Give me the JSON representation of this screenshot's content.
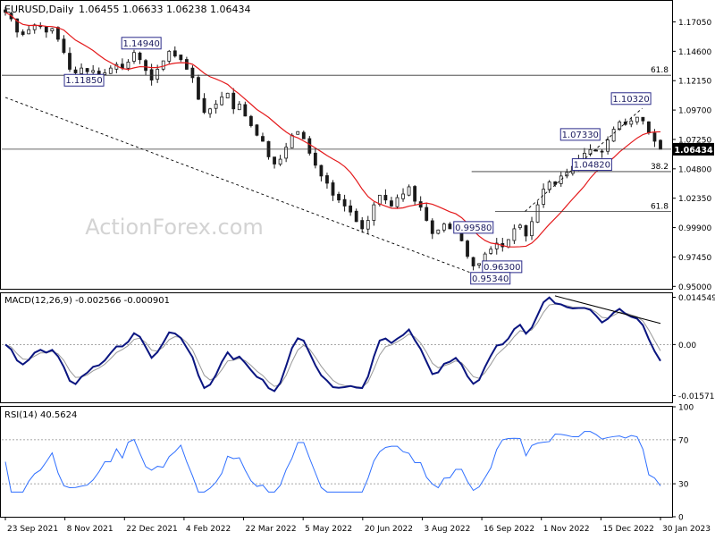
{
  "header": {
    "symbol": "EURUSD,Daily",
    "ohlc": "1.06455 1.06633 1.06238 1.06434"
  },
  "watermark": "ActionForex.com",
  "colors": {
    "background": "#ffffff",
    "candle": "#1a1a1a",
    "ma": "#e41a1c",
    "macd_line": "#0a1580",
    "macd_signal": "#999999",
    "rsi_line": "#2f6fff",
    "level_line": "#333333",
    "trendline": "#000000",
    "label_border": "#2b2b8a",
    "price_tag_bg": "#000000",
    "price_tag_text": "#ffffff"
  },
  "chart_data": [
    {
      "type": "candlestick",
      "title": "EURUSD,Daily",
      "ylim": [
        0.948,
        1.188
      ],
      "y_ticks": [
        "1.17050",
        "1.14600",
        "1.12150",
        "1.09700",
        "1.07250",
        "1.04800",
        "1.02350",
        "0.99900",
        "0.97450",
        "0.95000"
      ],
      "x_ticks": [
        "23 Sep 2021",
        "8 Nov 2021",
        "22 Dec 2021",
        "4 Feb 2022",
        "22 Mar 2022",
        "5 May 2022",
        "20 Jun 2022",
        "3 Aug 2022",
        "16 Sep 2022",
        "1 Nov 2022",
        "15 Dec 2022",
        "30 Jan 2023"
      ],
      "dates": [
        "2021-09-23",
        "2021-09-27",
        "2021-10-01",
        "2021-10-06",
        "2021-10-11",
        "2021-10-15",
        "2021-10-20",
        "2021-10-25",
        "2021-10-29",
        "2021-11-03",
        "2021-11-08",
        "2021-11-12",
        "2021-11-17",
        "2021-11-21",
        "2021-11-26",
        "2021-11-30",
        "2021-12-05",
        "2021-12-09",
        "2021-12-14",
        "2021-12-18",
        "2021-12-22",
        "2021-12-26",
        "2021-12-31",
        "2022-01-05",
        "2022-01-09",
        "2022-01-14",
        "2022-01-18",
        "2022-01-23",
        "2022-01-27",
        "2022-01-31",
        "2022-02-04",
        "2022-02-09",
        "2022-02-13",
        "2022-02-17",
        "2022-02-22",
        "2022-02-26",
        "2022-03-03",
        "2022-03-07",
        "2022-03-12",
        "2022-03-17",
        "2022-03-22",
        "2022-03-26",
        "2022-03-30",
        "2022-04-03",
        "2022-04-08",
        "2022-04-12",
        "2022-04-17",
        "2022-04-21",
        "2022-04-26",
        "2022-04-30",
        "2022-05-05",
        "2022-05-09",
        "2022-05-13",
        "2022-05-17",
        "2022-05-22",
        "2022-05-27",
        "2022-05-31",
        "2022-06-05",
        "2022-06-09",
        "2022-06-14",
        "2022-06-20",
        "2022-06-24",
        "2022-06-29",
        "2022-07-04",
        "2022-07-09",
        "2022-07-14",
        "2022-07-19",
        "2022-07-23",
        "2022-07-28",
        "2022-08-01",
        "2022-08-03",
        "2022-08-08",
        "2022-08-12",
        "2022-08-16",
        "2022-08-21",
        "2022-08-25",
        "2022-08-30",
        "2022-09-03",
        "2022-09-07",
        "2022-09-12",
        "2022-09-16",
        "2022-09-20",
        "2022-09-25",
        "2022-09-29",
        "2022-10-04",
        "2022-10-08",
        "2022-10-13",
        "2022-10-17",
        "2022-10-22",
        "2022-10-27",
        "2022-11-01",
        "2022-11-06",
        "2022-11-10",
        "2022-11-15",
        "2022-11-19",
        "2022-11-24",
        "2022-11-28",
        "2022-12-03",
        "2022-12-07",
        "2022-12-11",
        "2022-12-15",
        "2022-12-20",
        "2022-12-24",
        "2022-12-29",
        "2023-01-02",
        "2023-01-07",
        "2023-01-12",
        "2023-01-16",
        "2023-01-21",
        "2023-01-25",
        "2023-01-30",
        "2023-02-03",
        "2023-02-08"
      ],
      "close": [
        1.1785,
        1.173,
        1.162,
        1.16,
        1.164,
        1.168,
        1.167,
        1.162,
        1.165,
        1.156,
        1.145,
        1.131,
        1.128,
        1.132,
        1.129,
        1.13,
        1.126,
        1.128,
        1.132,
        1.135,
        1.132,
        1.137,
        1.145,
        1.139,
        1.13,
        1.122,
        1.131,
        1.138,
        1.146,
        1.142,
        1.139,
        1.131,
        1.124,
        1.106,
        1.095,
        1.098,
        1.102,
        1.108,
        1.111,
        1.098,
        1.102,
        1.092,
        1.084,
        1.076,
        1.071,
        1.058,
        1.052,
        1.056,
        1.066,
        1.076,
        1.079,
        1.073,
        1.061,
        1.051,
        1.042,
        1.036,
        1.026,
        1.022,
        1.017,
        1.012,
        1.004,
        0.998,
        1.005,
        1.018,
        1.026,
        1.022,
        1.017,
        1.024,
        1.027,
        1.033,
        1.021,
        1.016,
        1.005,
        0.994,
        0.997,
        1.002,
        0.998,
        0.999,
        0.988,
        0.975,
        0.967,
        0.969,
        0.977,
        0.981,
        0.986,
        0.983,
        0.989,
        0.998,
        1.001,
        0.992,
        1.004,
        1.018,
        1.031,
        1.037,
        1.035,
        1.042,
        1.045,
        1.05,
        1.056,
        1.061,
        1.064,
        1.063,
        1.062,
        1.072,
        1.081,
        1.087,
        1.085,
        1.088,
        1.091,
        1.088,
        1.078,
        1.071,
        1.06434
      ],
      "ma_window": 55,
      "annotations": [
        {
          "label": "1.14940",
          "value": 1.1494
        },
        {
          "label": "1.11850",
          "value": 1.1185
        },
        {
          "label": "1.10320",
          "value": 1.1032
        },
        {
          "label": "1.07330",
          "value": 1.0733
        },
        {
          "label": "1.04820",
          "value": 1.0482
        },
        {
          "label": "0.99580",
          "value": 0.9958
        },
        {
          "label": "0.96300",
          "value": 0.963
        },
        {
          "label": "0.95340",
          "value": 0.9534
        }
      ],
      "levels": [
        {
          "label": "61.8",
          "value": 1.126
        },
        {
          "label": "38.2",
          "value": 1.0457
        },
        {
          "label": "61.8",
          "value": 1.0125
        },
        {
          "label": "",
          "value": 1.06434
        }
      ],
      "last_price": "1.06434",
      "trendlines": [
        {
          "style": "dashed",
          "from": {
            "date": "2021-09-23",
            "value": 1.1075
          },
          "to": {
            "date": "2022-09-29",
            "value": 0.9558
          }
        },
        {
          "style": "dashed",
          "from": {
            "date": "2022-10-27",
            "value": 1.0125
          },
          "to": {
            "date": "2023-01-25",
            "value": 1.0985
          }
        }
      ]
    },
    {
      "type": "line",
      "title": "MACD(12,26,9) -0.002566 -0.000901",
      "ylim": [
        -0.0178,
        0.0158
      ],
      "y_ticks": [
        "0.014549",
        "0.00",
        "-0.015712"
      ],
      "series": [
        {
          "name": "MACD",
          "values": []
        },
        {
          "name": "Signal",
          "values": []
        }
      ],
      "trendline": {
        "from": {
          "date": "2022-11-19",
          "value": 0.015
        },
        "to": {
          "date": "2023-02-08",
          "value": 0.0065
        }
      },
      "zero_level": 0
    },
    {
      "type": "line",
      "title": "RSI(14) 40.5624",
      "ylim": [
        0,
        100
      ],
      "y_ticks": [
        "100",
        "70",
        "30",
        "0"
      ],
      "levels": [
        70,
        30
      ],
      "series": [
        {
          "name": "RSI",
          "values": []
        }
      ]
    }
  ]
}
